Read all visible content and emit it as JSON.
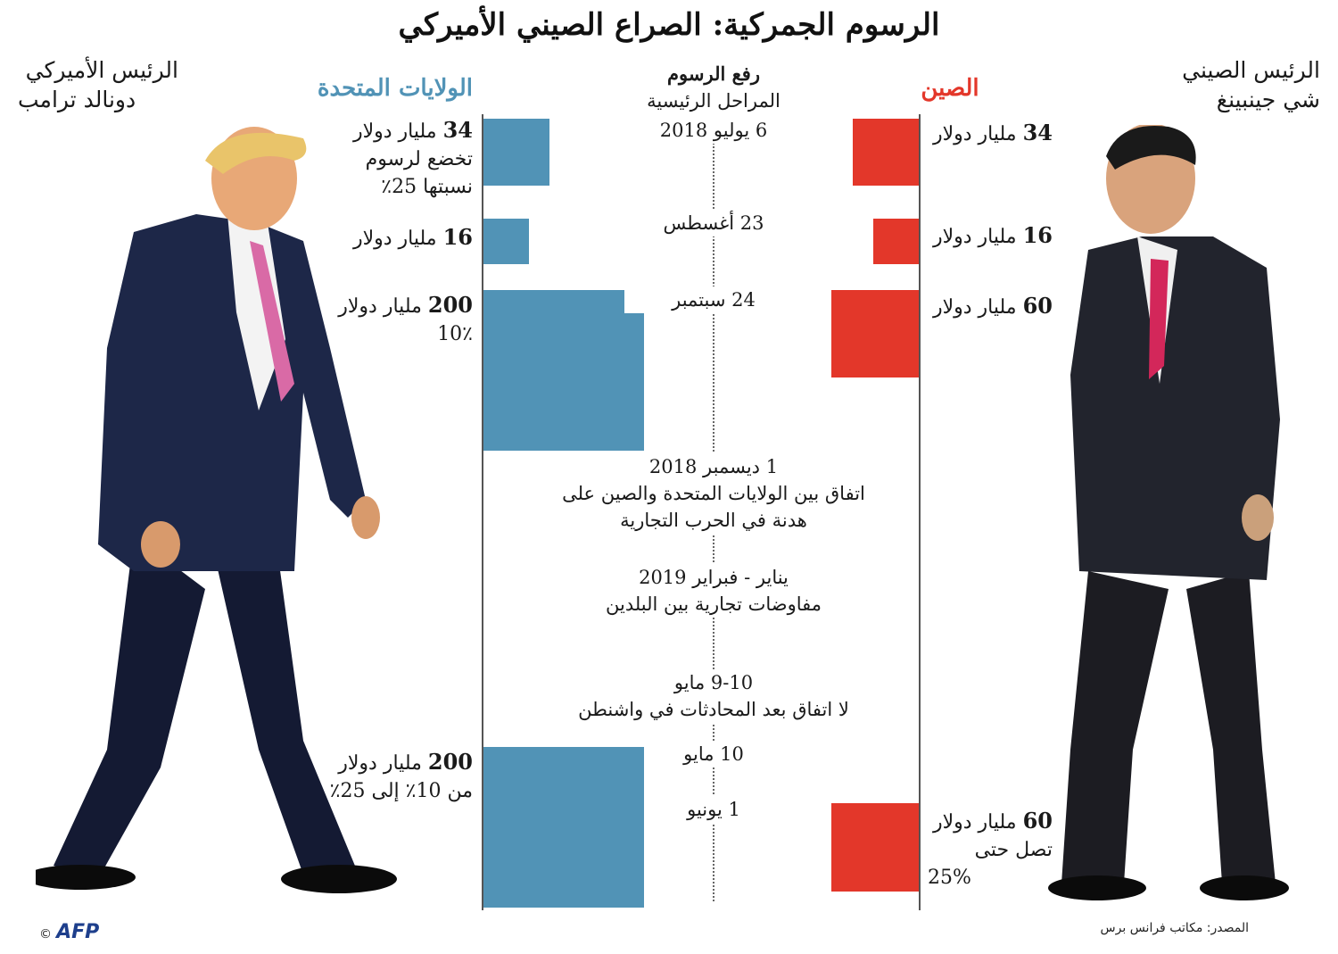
{
  "title": "الرسوم الجمركية: الصراع الصيني الأميركي",
  "leaders": {
    "us": {
      "line1": "الرئيس الأميركي",
      "line2": "دونالد ترامب"
    },
    "cn": {
      "line1": "الرئيس الصيني",
      "line2": "شي جينبينغ"
    }
  },
  "columns": {
    "us": "الولايات المتحدة",
    "cn": "الصين",
    "center_line1": "رفع الرسوم",
    "center_line2": "المراحل الرئيسية"
  },
  "colors": {
    "us": "#5193b6",
    "cn": "#e3372a"
  },
  "chart_data": {
    "type": "bar",
    "title": "الرسوم الجمركية: الصراع الصيني الأميركي",
    "unit": "مليار دولار",
    "series": [
      {
        "name": "الولايات المتحدة",
        "values": [
          34,
          16,
          200,
          200
        ]
      },
      {
        "name": "الصين",
        "values": [
          34,
          16,
          60,
          60
        ]
      }
    ],
    "categories": [
      "6 يوليو 2018",
      "23 أغسطس",
      "24 سبتمبر",
      "10 مايو / 1 يونيو"
    ]
  },
  "us_labels": [
    {
      "value": "34",
      "unit": "مليار دولار",
      "note1": "تخضع لرسوم",
      "note2": "نسبتها 25٪"
    },
    {
      "value": "16",
      "unit": "مليار دولار"
    },
    {
      "value": "200",
      "unit": "مليار دولار",
      "note1": "10٪"
    },
    {
      "value": "200",
      "unit": "مليار دولار",
      "note1": "من 10٪ إلى 25٪"
    }
  ],
  "cn_labels": [
    {
      "value": "34",
      "unit": "مليار دولار"
    },
    {
      "value": "16",
      "unit": "مليار دولار"
    },
    {
      "value": "60",
      "unit": "مليار دولار"
    },
    {
      "value": "60",
      "unit": "مليار دولار",
      "note1": "تصل حتى",
      "note2": "25%"
    }
  ],
  "milestones": {
    "m1": "6 يوليو 2018",
    "m2": "23 أغسطس",
    "m3": "24 سبتمبر",
    "m4_date": "1 ديسمبر 2018",
    "m4_l1": "اتفاق بين الولايات المتحدة والصين على",
    "m4_l2": "هدنة في الحرب التجارية",
    "m5_date": "يناير - فبراير 2019",
    "m5_l1": "مفاوضات تجارية بين البلدين",
    "m6_date": "9-10 مايو",
    "m6_l1": "لا اتفاق بعد المحادثات في واشنطن",
    "m7": "10 مايو",
    "m8": "1 يونيو"
  },
  "footer": {
    "source": "المصدر: مكاتب فرانس برس",
    "copyright": "©",
    "brand": "AFP"
  }
}
